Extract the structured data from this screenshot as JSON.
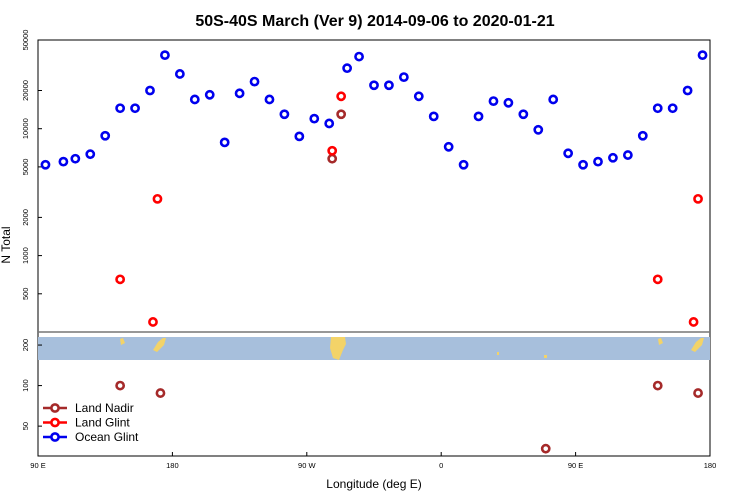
{
  "chart_data": {
    "type": "scatter",
    "title": "50S-40S March (Ver 9)   2014-09-06 to 2020-01-21",
    "xlabel": "Longitude (deg E)",
    "ylabel": "N Total",
    "y_scale": "log",
    "x_ticks": [
      {
        "lon": -270,
        "label": "90 E"
      },
      {
        "lon": -180,
        "label": "180"
      },
      {
        "lon": -90,
        "label": "90 W"
      },
      {
        "lon": 0,
        "label": "0"
      },
      {
        "lon": 90,
        "label": "90 E"
      },
      {
        "lon": 180,
        "label": "180"
      }
    ],
    "xlim": [
      -270,
      180
    ],
    "upper_panel": {
      "ylim": [
        250,
        50000
      ],
      "y_ticks": [
        {
          "value": 500,
          "label": "500"
        },
        {
          "value": 1000,
          "label": "1000"
        },
        {
          "value": 2000,
          "label": "2000"
        },
        {
          "value": 5000,
          "label": "5000"
        },
        {
          "value": 10000,
          "label": "10000"
        },
        {
          "value": 20000,
          "label": "20000"
        },
        {
          "value": 50000,
          "label": "50000"
        }
      ]
    },
    "lower_panel": {
      "ylim": [
        30,
        250
      ],
      "y_ticks": [
        {
          "value": 50,
          "label": "50"
        },
        {
          "value": 100,
          "label": "100"
        },
        {
          "value": 200,
          "label": "200"
        }
      ]
    },
    "series": [
      {
        "name": "Land Nadir",
        "color": "#a52a2a",
        "points": [
          {
            "x": -215,
            "y": 100
          },
          {
            "x": -188,
            "y": 88
          },
          {
            "x": -73,
            "y": 5800
          },
          {
            "x": -67,
            "y": 13000
          },
          {
            "x": 70,
            "y": 34
          },
          {
            "x": 145,
            "y": 100
          },
          {
            "x": 172,
            "y": 88
          }
        ]
      },
      {
        "name": "Land Glint",
        "color": "#ff0000",
        "points": [
          {
            "x": -215,
            "y": 650
          },
          {
            "x": -193,
            "y": 300
          },
          {
            "x": -190,
            "y": 2800
          },
          {
            "x": -73,
            "y": 6700
          },
          {
            "x": -67,
            "y": 18000
          },
          {
            "x": 145,
            "y": 650
          },
          {
            "x": 169,
            "y": 300
          },
          {
            "x": 172,
            "y": 2800
          }
        ]
      },
      {
        "name": "Ocean Glint",
        "color": "#0000ee",
        "points": [
          {
            "x": -265,
            "y": 5200
          },
          {
            "x": -253,
            "y": 5500
          },
          {
            "x": -245,
            "y": 5800
          },
          {
            "x": -235,
            "y": 6300
          },
          {
            "x": -225,
            "y": 8800
          },
          {
            "x": -215,
            "y": 14500
          },
          {
            "x": -205,
            "y": 14500
          },
          {
            "x": -195,
            "y": 20000
          },
          {
            "x": -185,
            "y": 38000
          },
          {
            "x": -175,
            "y": 27000
          },
          {
            "x": -165,
            "y": 17000
          },
          {
            "x": -155,
            "y": 18500
          },
          {
            "x": -145,
            "y": 7800
          },
          {
            "x": -135,
            "y": 19000
          },
          {
            "x": -125,
            "y": 23500
          },
          {
            "x": -115,
            "y": 17000
          },
          {
            "x": -105,
            "y": 13000
          },
          {
            "x": -95,
            "y": 8700
          },
          {
            "x": -85,
            "y": 12000
          },
          {
            "x": -75,
            "y": 11000
          },
          {
            "x": -63,
            "y": 30000
          },
          {
            "x": -55,
            "y": 37000
          },
          {
            "x": -45,
            "y": 22000
          },
          {
            "x": -35,
            "y": 22000
          },
          {
            "x": -25,
            "y": 25500
          },
          {
            "x": -15,
            "y": 18000
          },
          {
            "x": -5,
            "y": 12500
          },
          {
            "x": 5,
            "y": 7200
          },
          {
            "x": 15,
            "y": 5200
          },
          {
            "x": 25,
            "y": 12500
          },
          {
            "x": 35,
            "y": 16500
          },
          {
            "x": 45,
            "y": 16000
          },
          {
            "x": 55,
            "y": 13000
          },
          {
            "x": 65,
            "y": 9800
          },
          {
            "x": 75,
            "y": 17000
          },
          {
            "x": 85,
            "y": 6400
          },
          {
            "x": 95,
            "y": 5200
          },
          {
            "x": 105,
            "y": 5500
          },
          {
            "x": 115,
            "y": 5900
          },
          {
            "x": 125,
            "y": 6200
          },
          {
            "x": 135,
            "y": 8800
          },
          {
            "x": 145,
            "y": 14500
          },
          {
            "x": 155,
            "y": 14500
          },
          {
            "x": 165,
            "y": 20000
          },
          {
            "x": 175,
            "y": 38000
          }
        ]
      }
    ],
    "legend_position": "bottom-left",
    "map_strip": {
      "ocean_color": "#a7bfdc",
      "land_color": "#f3d368"
    }
  }
}
